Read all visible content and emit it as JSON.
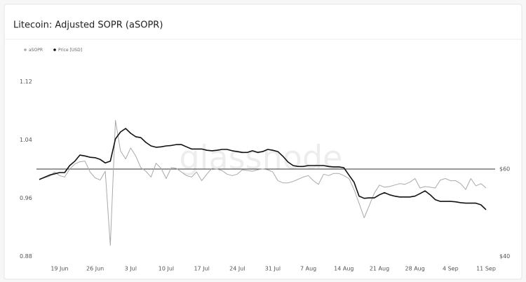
{
  "chart_data": {
    "type": "line",
    "title": "Litecoin: Adjusted SOPR (aSOPR)",
    "watermark": "glassnode",
    "categories": [
      null,
      null,
      null,
      null,
      "19 Jun",
      null,
      null,
      null,
      null,
      null,
      null,
      "26 Jun",
      null,
      null,
      null,
      null,
      null,
      null,
      "3 Jul",
      null,
      null,
      null,
      null,
      null,
      null,
      "10 Jul",
      null,
      null,
      null,
      null,
      null,
      null,
      "17 Jul",
      null,
      null,
      null,
      null,
      null,
      null,
      "24 Jul",
      null,
      null,
      null,
      null,
      null,
      null,
      "31 Jul",
      null,
      null,
      null,
      null,
      null,
      null,
      "7 Aug",
      null,
      null,
      null,
      null,
      null,
      null,
      "14 Aug",
      null,
      null,
      null,
      null,
      null,
      null,
      "21 Aug",
      null,
      null,
      null,
      null,
      null,
      null,
      "28 Aug",
      null,
      null,
      null,
      null,
      null,
      null,
      "4 Sep",
      null,
      null,
      null,
      null,
      null,
      null,
      "11 Sep"
    ],
    "series": [
      {
        "name": "aSOPR",
        "color": "#a9a9a9",
        "axis": "y",
        "values": [
          0.986,
          0.988,
          0.99,
          0.996,
          0.991,
          0.989,
          1.0,
          1.007,
          1.01,
          1.011,
          0.996,
          0.988,
          0.985,
          0.997,
          0.895,
          1.067,
          1.025,
          1.014,
          1.029,
          1.018,
          1.002,
          0.997,
          0.989,
          1.008,
          1.001,
          0.987,
          1.002,
          1.001,
          0.996,
          0.991,
          0.989,
          0.996,
          0.984,
          0.993,
          1.001,
          1.0,
          0.998,
          0.993,
          0.991,
          0.993,
          0.999,
          0.998,
          0.997,
          0.999,
          1.0,
          0.999,
          0.996,
          0.984,
          0.981,
          0.981,
          0.983,
          0.986,
          0.989,
          0.991,
          0.984,
          0.979,
          0.993,
          0.991,
          0.994,
          0.994,
          0.991,
          0.987,
          0.972,
          0.953,
          0.933,
          0.95,
          0.967,
          0.978,
          0.975,
          0.976,
          0.978,
          0.98,
          0.979,
          0.982,
          0.987,
          0.974,
          0.976,
          0.975,
          0.974,
          0.985,
          0.987,
          0.984,
          0.984,
          0.98,
          0.972,
          0.987,
          0.977,
          0.98,
          0.974
        ]
      },
      {
        "name": "Price [USD]",
        "color": "#111111",
        "axis": "y2",
        "values": [
          57.6,
          58.1,
          58.6,
          58.9,
          59.2,
          59.2,
          60.8,
          61.8,
          63.2,
          63.0,
          62.7,
          62.6,
          62.2,
          61.4,
          61.8,
          66.9,
          68.5,
          69.3,
          68.2,
          67.4,
          67.2,
          66.1,
          65.3,
          65.0,
          65.1,
          65.3,
          65.4,
          65.6,
          65.6,
          65.1,
          64.6,
          64.6,
          64.6,
          64.3,
          64.2,
          64.3,
          64.5,
          64.5,
          64.2,
          64.0,
          63.8,
          63.8,
          64.2,
          63.8,
          64.0,
          64.5,
          64.3,
          64.0,
          62.9,
          61.6,
          60.8,
          60.6,
          60.6,
          60.8,
          60.8,
          60.8,
          60.8,
          60.6,
          60.5,
          60.5,
          60.3,
          58.6,
          57.0,
          53.8,
          53.3,
          53.4,
          53.4,
          54.1,
          54.6,
          54.1,
          53.8,
          53.6,
          53.6,
          53.6,
          53.8,
          54.4,
          55.0,
          54.1,
          53.0,
          52.6,
          52.6,
          52.6,
          52.5,
          52.3,
          52.2,
          52.2,
          52.2,
          51.8,
          50.7
        ]
      }
    ],
    "ylim": [
      0.88,
      1.12
    ],
    "yticks": [
      0.88,
      0.96,
      1.04,
      1.12
    ],
    "y2lim": [
      40,
      80
    ],
    "y2ticks": [
      {
        "value": 40,
        "label": "$40"
      },
      {
        "value": 60,
        "label": "$60"
      }
    ],
    "reference_line": 1,
    "grid": false
  }
}
